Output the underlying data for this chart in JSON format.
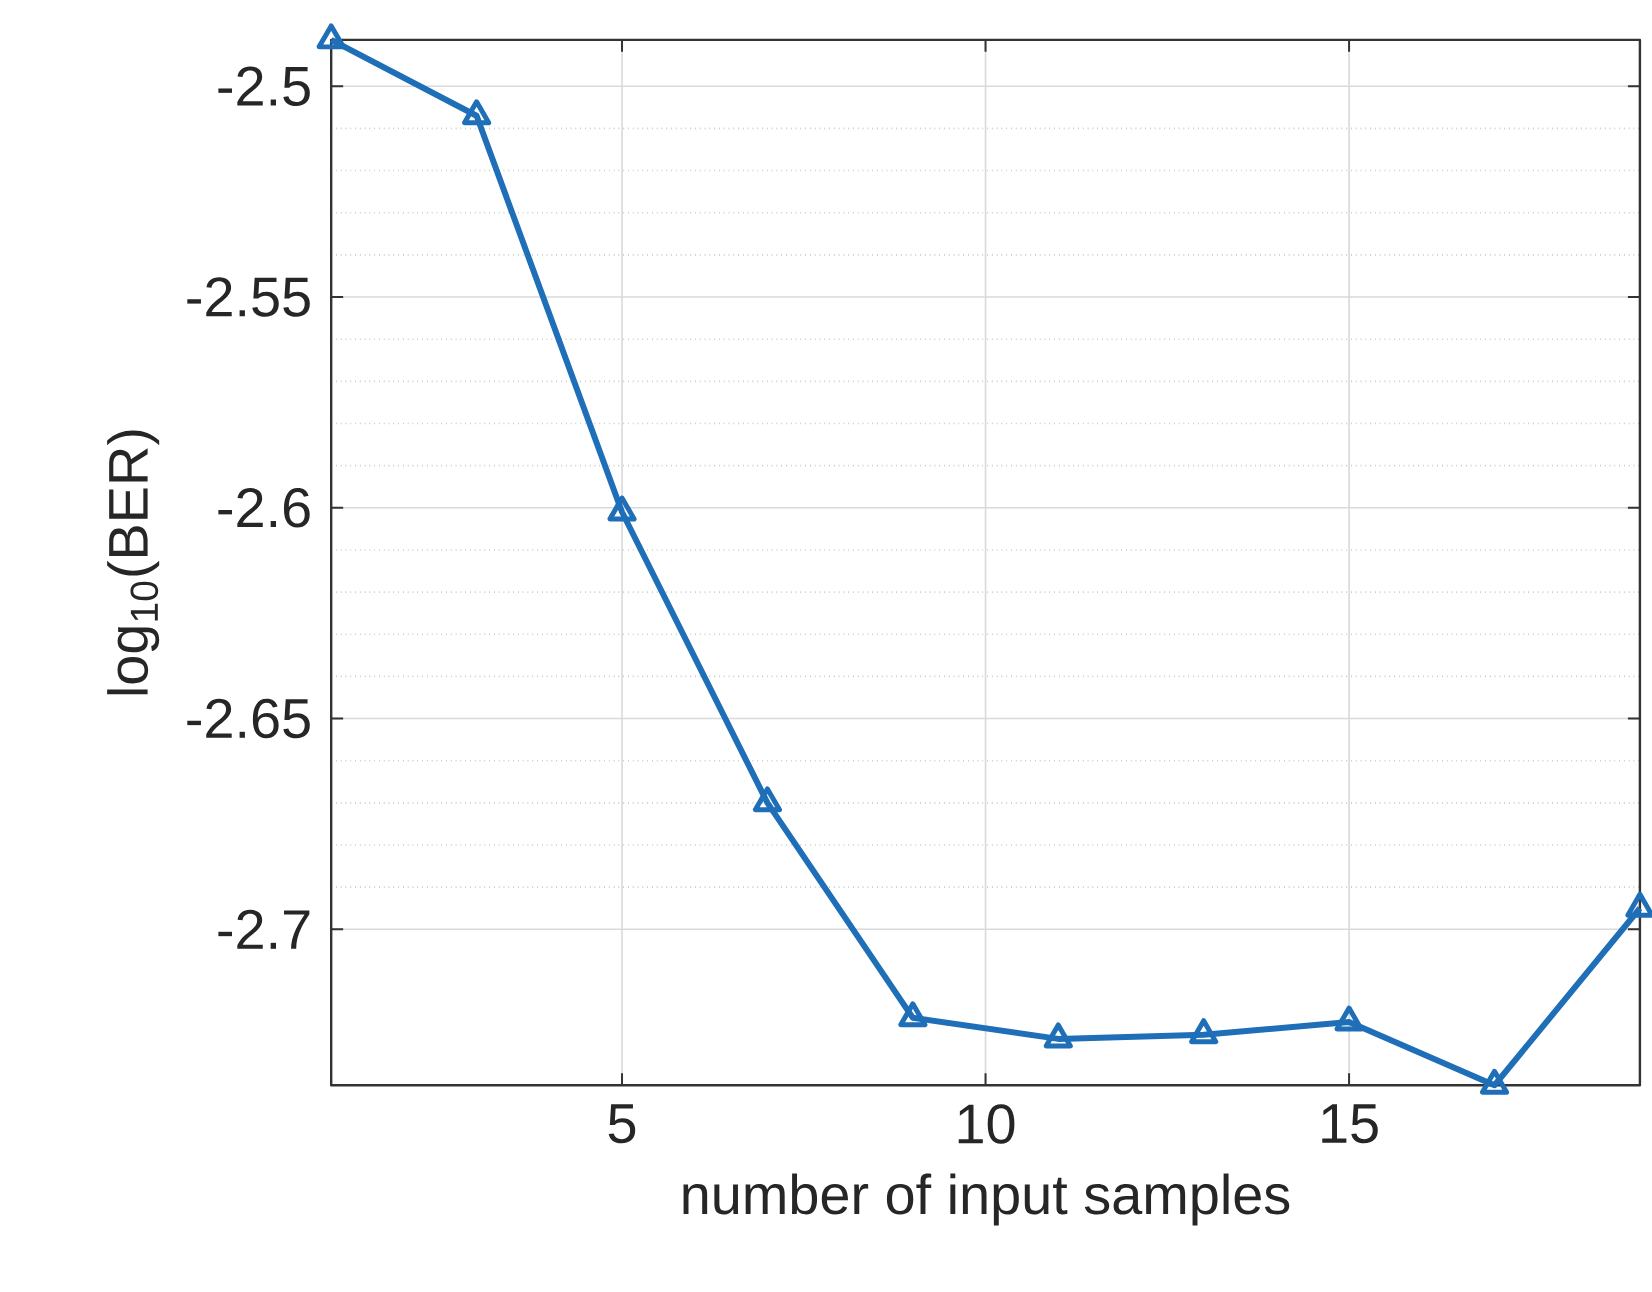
{
  "chart_data": {
    "type": "line",
    "xlabel": "number of input samples",
    "ylabel": "log$_{10}$(BER)",
    "x": [
      1,
      3,
      5,
      7,
      9,
      11,
      13,
      15,
      17,
      19
    ],
    "series": [
      {
        "color": "#1f6fb8",
        "values": [
          -2.489,
          -2.507,
          -2.601,
          -2.67,
          -2.721,
          -2.726,
          -2.725,
          -2.722,
          -2.737,
          -2.695
        ]
      }
    ],
    "xlim": [
      1,
      19
    ],
    "ylim": [
      -2.737,
      -2.489
    ],
    "xticks": [
      5,
      10,
      15
    ],
    "yticks": [
      -2.7,
      -2.65,
      -2.6,
      -2.55,
      -2.5
    ],
    "grid": true,
    "marker": "triangle",
    "line_style": "solid"
  }
}
